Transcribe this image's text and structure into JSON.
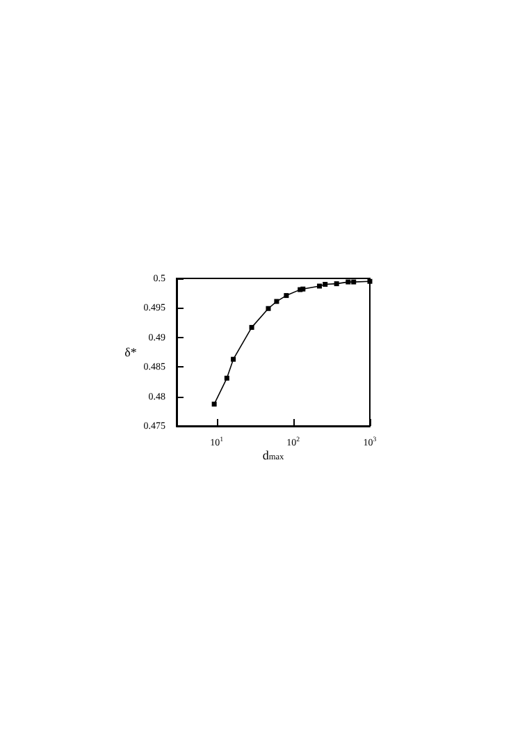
{
  "chart_data": {
    "type": "line",
    "xlabel": "d$_{max}$",
    "ylabel": "δ*",
    "log": "x",
    "marker": "square",
    "line_style": "solid",
    "grid": false,
    "series": [
      {
        "color": "#000000",
        "x": [
          9.3,
          13.6,
          16.5,
          28.7,
          47.3,
          60.7,
          81.3,
          123,
          134,
          220,
          261,
          368,
          521,
          615,
          1000
        ],
        "values": [
          0.4787,
          0.4831,
          0.4863,
          0.4917,
          0.4949,
          0.4961,
          0.4971,
          0.4981,
          0.4982,
          0.4987,
          0.499,
          0.4991,
          0.4994,
          0.4994,
          0.4995
        ]
      }
    ],
    "xlim": [
      3,
      1000
    ],
    "xticks": [
      {
        "value": 10,
        "label": "10$^{1}$"
      },
      {
        "value": 100,
        "label": "10$^{2}$"
      },
      {
        "value": 1000,
        "label": "10$^{3}$"
      }
    ],
    "ylim": [
      0.475,
      0.5
    ],
    "yticks": [
      0.475,
      0.48,
      0.485,
      0.49,
      0.495,
      0.5
    ]
  }
}
